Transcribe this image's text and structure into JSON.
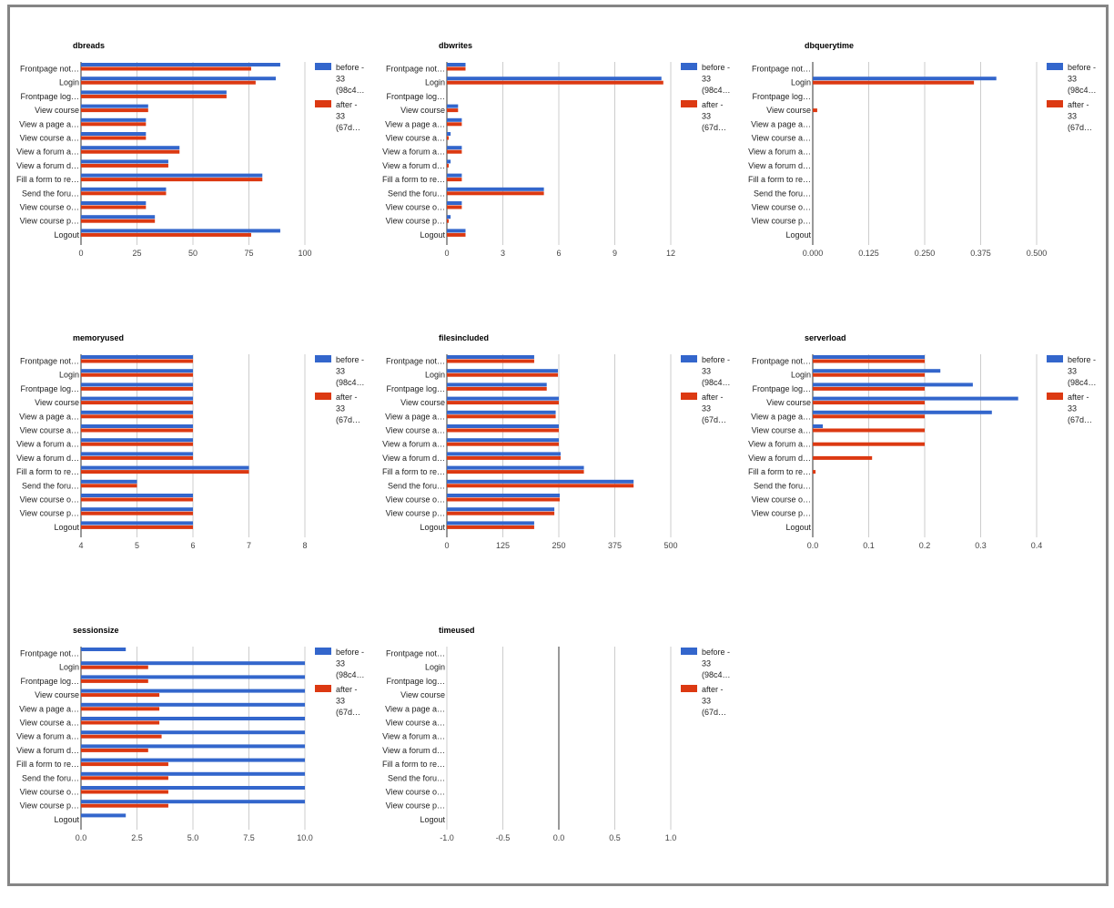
{
  "legend_colors": {
    "before": "#3366cc",
    "after": "#dc3912"
  },
  "chart_data": [
    {
      "type": "bar",
      "orientation": "horizontal",
      "title": "dbreads",
      "categories": [
        "Frontpage not…",
        "Login",
        "Frontpage log…",
        "View course",
        "View a page a…",
        "View course a…",
        "View a forum a…",
        "View a forum d…",
        "Fill a form to re…",
        "Send the foru…",
        "View course o…",
        "View course p…",
        "Logout"
      ],
      "series": [
        {
          "name": "before - 33 (98c4…",
          "color": "#3366cc",
          "values": [
            89,
            87,
            65,
            30,
            29,
            29,
            44,
            39,
            81,
            38,
            29,
            33,
            89
          ]
        },
        {
          "name": "after - 33 (67d…",
          "color": "#dc3912",
          "values": [
            76,
            78,
            65,
            30,
            29,
            29,
            44,
            39,
            81,
            38,
            29,
            33,
            76
          ]
        }
      ],
      "xlim": [
        0,
        100
      ],
      "xticks": [
        "0",
        "25",
        "50",
        "75",
        "100"
      ],
      "grid": true,
      "legend": "right"
    },
    {
      "type": "bar",
      "orientation": "horizontal",
      "title": "dbwrites",
      "categories": [
        "Frontpage not…",
        "Login",
        "Frontpage log…",
        "View course",
        "View a page a…",
        "View course a…",
        "View a forum a…",
        "View a forum d…",
        "Fill a form to re…",
        "Send the foru…",
        "View course o…",
        "View course p…",
        "Logout"
      ],
      "series": [
        {
          "name": "before - 33 (98c4…",
          "color": "#3366cc",
          "values": [
            1,
            11.5,
            0,
            0.6,
            0.8,
            0.2,
            0.8,
            0.2,
            0.8,
            5.2,
            0.8,
            0.2,
            1
          ]
        },
        {
          "name": "after - 33 (67d…",
          "color": "#dc3912",
          "values": [
            1,
            11.6,
            0,
            0.6,
            0.8,
            0.1,
            0.8,
            0.1,
            0.8,
            5.2,
            0.8,
            0.1,
            1
          ]
        }
      ],
      "xlim": [
        0,
        12
      ],
      "xticks": [
        "0",
        "3",
        "6",
        "9",
        "12"
      ],
      "grid": true,
      "legend": "right"
    },
    {
      "type": "bar",
      "orientation": "horizontal",
      "title": "dbquerytime",
      "categories": [
        "Frontpage not…",
        "Login",
        "Frontpage log…",
        "View course",
        "View a page a…",
        "View course a…",
        "View a forum a…",
        "View a forum d…",
        "Fill a form to re…",
        "Send the foru…",
        "View course o…",
        "View course p…",
        "Logout"
      ],
      "series": [
        {
          "name": "before - 33 (98c4…",
          "color": "#3366cc",
          "values": [
            0,
            0.41,
            0,
            0,
            0,
            0,
            0,
            0,
            0,
            0,
            0,
            0,
            0
          ]
        },
        {
          "name": "after - 33 (67d…",
          "color": "#dc3912",
          "values": [
            0,
            0.36,
            0,
            0.01,
            0,
            0,
            0,
            0,
            0,
            0,
            0,
            0,
            0
          ]
        }
      ],
      "xlim": [
        0,
        0.5
      ],
      "xticks": [
        "0.000",
        "0.125",
        "0.250",
        "0.375",
        "0.500"
      ],
      "grid": true,
      "legend": "right"
    },
    {
      "type": "bar",
      "orientation": "horizontal",
      "title": "memoryused",
      "categories": [
        "Frontpage not…",
        "Login",
        "Frontpage log…",
        "View course",
        "View a page a…",
        "View course a…",
        "View a forum a…",
        "View a forum d…",
        "Fill a form to re…",
        "Send the foru…",
        "View course o…",
        "View course p…",
        "Logout"
      ],
      "series": [
        {
          "name": "before - 33 (98c4…",
          "color": "#3366cc",
          "values": [
            6,
            6,
            6,
            6,
            6,
            6,
            6,
            6,
            7,
            5,
            6,
            6,
            6
          ]
        },
        {
          "name": "after - 33 (67d…",
          "color": "#dc3912",
          "values": [
            6,
            6,
            6,
            6,
            6,
            6,
            6,
            6,
            7,
            5,
            6,
            6,
            6
          ]
        }
      ],
      "xlim": [
        4,
        8
      ],
      "xticks": [
        "4",
        "5",
        "6",
        "7",
        "8"
      ],
      "grid": true,
      "legend": "right"
    },
    {
      "type": "bar",
      "orientation": "horizontal",
      "title": "filesincluded",
      "categories": [
        "Frontpage not…",
        "Login",
        "Frontpage log…",
        "View course",
        "View a page a…",
        "View course a…",
        "View a forum a…",
        "View a forum d…",
        "Fill a form to re…",
        "Send the foru…",
        "View course o…",
        "View course p…",
        "Logout"
      ],
      "series": [
        {
          "name": "before - 33 (98c4…",
          "color": "#3366cc",
          "values": [
            195,
            248,
            223,
            250,
            243,
            250,
            250,
            254,
            306,
            417,
            252,
            240,
            195
          ]
        },
        {
          "name": "after - 33 (67d…",
          "color": "#dc3912",
          "values": [
            195,
            248,
            223,
            250,
            243,
            250,
            250,
            254,
            306,
            417,
            252,
            240,
            195
          ]
        }
      ],
      "xlim": [
        0,
        500
      ],
      "xticks": [
        "0",
        "125",
        "250",
        "375",
        "500"
      ],
      "grid": true,
      "legend": "right"
    },
    {
      "type": "bar",
      "orientation": "horizontal",
      "title": "serverload",
      "categories": [
        "Frontpage not…",
        "Login",
        "Frontpage log…",
        "View course",
        "View a page a…",
        "View course a…",
        "View a forum a…",
        "View a forum d…",
        "Fill a form to re…",
        "Send the foru…",
        "View course o…",
        "View course p…",
        "Logout"
      ],
      "series": [
        {
          "name": "before - 33 (98c4…",
          "color": "#3366cc",
          "values": [
            0.2,
            0.228,
            0.286,
            0.367,
            0.32,
            0.018,
            0,
            0,
            0,
            0,
            0,
            0,
            0
          ]
        },
        {
          "name": "after - 33 (67d…",
          "color": "#dc3912",
          "values": [
            0.2,
            0.2,
            0.2,
            0.2,
            0.2,
            0.2,
            0.2,
            0.106,
            0.005,
            0,
            0,
            0,
            0
          ]
        }
      ],
      "xlim": [
        0,
        0.4
      ],
      "xticks": [
        "0.0",
        "0.1",
        "0.2",
        "0.3",
        "0.4"
      ],
      "grid": true,
      "legend": "right"
    },
    {
      "type": "bar",
      "orientation": "horizontal",
      "title": "sessionsize",
      "categories": [
        "Frontpage not…",
        "Login",
        "Frontpage log…",
        "View course",
        "View a page a…",
        "View course a…",
        "View a forum a…",
        "View a forum d…",
        "Fill a form to re…",
        "Send the foru…",
        "View course o…",
        "View course p…",
        "Logout"
      ],
      "series": [
        {
          "name": "before - 33 (98c4…",
          "color": "#3366cc",
          "values": [
            2,
            10,
            10,
            10,
            10,
            10,
            10,
            10,
            10,
            10,
            10,
            10,
            2
          ]
        },
        {
          "name": "after - 33 (67d…",
          "color": "#dc3912",
          "values": [
            0,
            3,
            3,
            3.5,
            3.5,
            3.5,
            3.6,
            3,
            3.9,
            3.9,
            3.9,
            3.9,
            0
          ]
        }
      ],
      "xlim": [
        0,
        10
      ],
      "xticks": [
        "0.0",
        "2.5",
        "5.0",
        "7.5",
        "10.0"
      ],
      "grid": true,
      "legend": "right"
    },
    {
      "type": "bar",
      "orientation": "horizontal",
      "title": "timeused",
      "categories": [
        "Frontpage not…",
        "Login",
        "Frontpage log…",
        "View course",
        "View a page a…",
        "View course a…",
        "View a forum a…",
        "View a forum d…",
        "Fill a form to re…",
        "Send the foru…",
        "View course o…",
        "View course p…",
        "Logout"
      ],
      "series": [
        {
          "name": "before - 33 (98c4…",
          "color": "#3366cc",
          "values": [
            0,
            0,
            0,
            0,
            0,
            0,
            0,
            0,
            0,
            0,
            0,
            0,
            0
          ]
        },
        {
          "name": "after - 33 (67d…",
          "color": "#dc3912",
          "values": [
            0,
            0,
            0,
            0,
            0,
            0,
            0,
            0,
            0,
            0,
            0,
            0,
            0
          ]
        }
      ],
      "xlim": [
        -1,
        1
      ],
      "xticks": [
        "-1.0",
        "-0.5",
        "0.0",
        "0.5",
        "1.0"
      ],
      "grid": true,
      "legend": "right"
    }
  ]
}
